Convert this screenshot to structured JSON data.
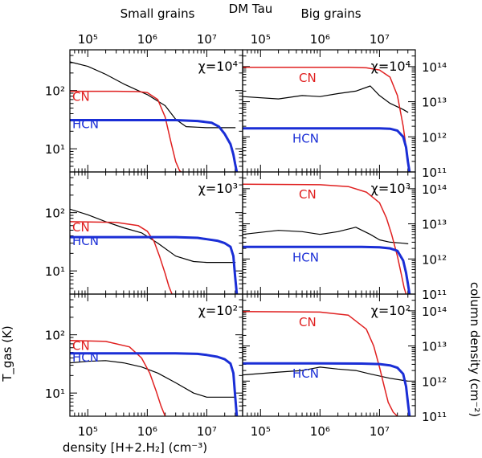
{
  "figure": {
    "title": "DM Tau",
    "left_column_title": "Small grains",
    "right_column_title": "Big grains",
    "xlabel": "density [H+2.H₂] (cm⁻³)",
    "ylabel_left": "T_gas (K)",
    "ylabel_right": "column density (cm⁻²)",
    "colors": {
      "CN": "#e02020",
      "HCN": "#1a2ed6",
      "Tgas": "#000000"
    }
  },
  "chart_data": [
    {
      "type": "line",
      "panel": "small-grains chi=1e4",
      "column": "left",
      "row": 0,
      "annotation": "χ=10⁴",
      "xscale": "log",
      "xlim": [
        50000,
        40000000
      ],
      "ylabel": "T_gas (K)",
      "yscale": "log",
      "ylim": [
        4,
        500
      ],
      "yticks": [
        10,
        100
      ],
      "series": [
        {
          "name": "Tgas",
          "label": "",
          "width": 1.2,
          "x": [
            50000,
            100000,
            200000,
            400000,
            700000,
            1000000,
            2000000,
            3000000,
            4500000,
            7000000,
            10000000,
            20000000,
            30000000
          ],
          "y": [
            310,
            260,
            190,
            130,
            100,
            85,
            55,
            32,
            24,
            23.5,
            23,
            23,
            23
          ]
        },
        {
          "name": "CN",
          "label": "CN",
          "label_pos": "left",
          "width": 1.5,
          "x": [
            50000,
            300000,
            700000,
            1000000,
            1500000,
            2000000,
            2500000,
            3000000,
            3500000,
            3700000
          ],
          "y": [
            97,
            97,
            96,
            92,
            70,
            35,
            13,
            6,
            4.2,
            4
          ]
        },
        {
          "name": "HCN",
          "label": "HCN",
          "label_pos": "left",
          "width": 3,
          "x": [
            50000,
            1000000,
            3000000,
            7000000,
            12000000,
            16000000,
            20000000,
            25000000,
            28000000,
            30000000,
            32000000
          ],
          "y": [
            31,
            31,
            31,
            30,
            28,
            24,
            18,
            12,
            8,
            5.5,
            4
          ]
        }
      ]
    },
    {
      "type": "line",
      "panel": "small-grains chi=1e3",
      "column": "left",
      "row": 1,
      "annotation": "χ=10³",
      "xscale": "log",
      "xlim": [
        50000,
        40000000
      ],
      "yscale": "log",
      "ylim": [
        4,
        500
      ],
      "yticks": [
        10,
        100
      ],
      "series": [
        {
          "name": "Tgas",
          "label": "",
          "width": 1.2,
          "x": [
            50000,
            100000,
            200000,
            400000,
            800000,
            1500000,
            3000000,
            6000000,
            10000000,
            20000000,
            30000000
          ],
          "y": [
            115,
            92,
            70,
            55,
            45,
            30,
            18,
            14.5,
            14,
            14,
            14
          ]
        },
        {
          "name": "CN",
          "label": "CN",
          "label_pos": "left",
          "width": 1.5,
          "x": [
            50000,
            300000,
            700000,
            1000000,
            1300000,
            1600000,
            2000000,
            2300000,
            2600000
          ],
          "y": [
            70,
            68,
            60,
            48,
            32,
            18,
            9,
            5.5,
            4
          ]
        },
        {
          "name": "HCN",
          "label": "HCN",
          "label_pos": "left",
          "width": 3,
          "x": [
            50000,
            1000000,
            3000000,
            7000000,
            10000000,
            15000000,
            20000000,
            25000000,
            28000000,
            30000000,
            32000000
          ],
          "y": [
            38,
            38,
            38,
            37,
            35,
            33,
            30,
            26,
            18,
            8,
            4
          ]
        }
      ]
    },
    {
      "type": "line",
      "panel": "small-grains chi=1e2",
      "column": "left",
      "row": 2,
      "annotation": "χ=10²",
      "xscale": "log",
      "xlim": [
        50000,
        40000000
      ],
      "yscale": "log",
      "ylim": [
        4,
        500
      ],
      "yticks": [
        10,
        100
      ],
      "series": [
        {
          "name": "Tgas",
          "label": "",
          "width": 1.2,
          "x": [
            50000,
            100000,
            200000,
            400000,
            800000,
            1500000,
            3000000,
            6000000,
            10000000,
            20000000,
            30000000
          ],
          "y": [
            33,
            35,
            36,
            33,
            28,
            22,
            15,
            10,
            8.5,
            8.5,
            8.5
          ]
        },
        {
          "name": "CN",
          "label": "CN",
          "label_pos": "left",
          "width": 1.5,
          "x": [
            50000,
            200000,
            500000,
            800000,
            1100000,
            1400000,
            1700000,
            2000000
          ],
          "y": [
            80,
            77,
            62,
            40,
            22,
            11,
            6,
            4
          ]
        },
        {
          "name": "HCN",
          "label": "HCN",
          "label_pos": "left",
          "width": 3,
          "x": [
            50000,
            1000000,
            3000000,
            7000000,
            10000000,
            15000000,
            20000000,
            25000000,
            28000000,
            30000000,
            32000000
          ],
          "y": [
            48,
            48,
            48,
            47,
            45,
            42,
            38,
            32,
            22,
            9,
            4
          ]
        }
      ]
    },
    {
      "type": "line",
      "panel": "big-grains chi=1e4",
      "column": "right",
      "row": 0,
      "annotation": "χ=10⁴",
      "xscale": "log",
      "xlim": [
        50000,
        40000000
      ],
      "ylabel": "column density (cm⁻²)",
      "yscale": "log",
      "ylim": [
        100000000000,
        300000000000000
      ],
      "yticks": [
        100000000000,
        1000000000000,
        10000000000000,
        100000000000000
      ],
      "series": [
        {
          "name": "Tgas",
          "label": "",
          "width": 1.2,
          "x": [
            50000,
            200000,
            500000,
            1000000,
            2000000,
            4000000,
            7000000,
            10000000,
            15000000,
            25000000,
            30000000
          ],
          "y": [
            14000000000000,
            12000000000000,
            15000000000000,
            14000000000000,
            17000000000000,
            20000000000000,
            28000000000000,
            15000000000000,
            9000000000000,
            6000000000000,
            5000000000000
          ]
        },
        {
          "name": "CN",
          "label": "CN",
          "label_pos": "mid",
          "width": 1.5,
          "x": [
            50000,
            1000000,
            3000000,
            6000000,
            10000000,
            15000000,
            20000000,
            25000000,
            28000000,
            30000000,
            32000000
          ],
          "y": [
            95000000000000,
            95000000000000,
            95000000000000,
            92000000000000,
            80000000000000,
            50000000000000,
            15000000000000,
            2000000000000,
            500000000000,
            200000000000,
            100000000000
          ]
        },
        {
          "name": "HCN",
          "label": "HCN",
          "label_pos": "mid",
          "width": 3,
          "x": [
            50000,
            1000000,
            5000000,
            10000000,
            15000000,
            20000000,
            25000000,
            28000000,
            30000000,
            32000000
          ],
          "y": [
            1750000000000,
            1750000000000,
            1750000000000,
            1740000000000,
            1700000000000,
            1500000000000,
            1000000000000,
            500000000000,
            200000000000,
            100000000000
          ]
        }
      ]
    },
    {
      "type": "line",
      "panel": "big-grains chi=1e3",
      "column": "right",
      "row": 1,
      "annotation": "χ=10³",
      "xscale": "log",
      "xlim": [
        50000,
        40000000
      ],
      "yscale": "log",
      "ylim": [
        100000000000,
        300000000000000
      ],
      "yticks": [
        100000000000,
        1000000000000,
        10000000000000,
        100000000000000
      ],
      "series": [
        {
          "name": "Tgas",
          "label": "",
          "width": 1.2,
          "x": [
            50000,
            200000,
            500000,
            1000000,
            2000000,
            4000000,
            7000000,
            10000000,
            15000000,
            25000000,
            30000000
          ],
          "y": [
            5000000000000,
            6500000000000,
            6000000000000,
            5000000000000,
            6000000000000,
            8000000000000,
            5000000000000,
            3500000000000,
            3000000000000,
            2800000000000,
            2700000000000
          ]
        },
        {
          "name": "CN",
          "label": "CN",
          "label_pos": "mid",
          "width": 1.5,
          "x": [
            50000,
            1000000,
            3000000,
            6000000,
            10000000,
            13000000,
            16000000,
            20000000,
            23000000,
            26000000,
            28000000
          ],
          "y": [
            135000000000000,
            130000000000000,
            115000000000000,
            80000000000000,
            40000000000000,
            15000000000000,
            5000000000000,
            1200000000000,
            400000000000,
            150000000000,
            100000000000
          ]
        },
        {
          "name": "HCN",
          "label": "HCN",
          "label_pos": "mid",
          "width": 3,
          "x": [
            50000,
            1000000,
            5000000,
            10000000,
            15000000,
            20000000,
            25000000,
            28000000,
            30000000,
            32000000
          ],
          "y": [
            2200000000000,
            2200000000000,
            2200000000000,
            2150000000000,
            2000000000000,
            1700000000000,
            900000000000,
            400000000000,
            200000000000,
            100000000000
          ]
        }
      ]
    },
    {
      "type": "line",
      "panel": "big-grains chi=1e2",
      "column": "right",
      "row": 2,
      "annotation": "χ=10²",
      "xscale": "log",
      "xlim": [
        50000,
        40000000
      ],
      "yscale": "log",
      "ylim": [
        100000000000,
        300000000000000
      ],
      "yticks": [
        100000000000,
        1000000000000,
        10000000000000,
        100000000000000
      ],
      "series": [
        {
          "name": "Tgas",
          "label": "",
          "width": 1.2,
          "x": [
            50000,
            200000,
            500000,
            1000000,
            2000000,
            4000000,
            7000000,
            10000000,
            15000000,
            25000000,
            30000000
          ],
          "y": [
            1500000000000,
            1800000000000,
            2000000000000,
            2500000000000,
            2200000000000,
            2000000000000,
            1600000000000,
            1400000000000,
            1200000000000,
            1050000000000,
            1000000000000
          ]
        },
        {
          "name": "CN",
          "label": "CN",
          "label_pos": "mid",
          "width": 1.5,
          "x": [
            50000,
            1000000,
            3000000,
            6000000,
            8000000,
            10000000,
            12000000,
            14000000,
            17000000,
            20000000
          ],
          "y": [
            95000000000000,
            92000000000000,
            75000000000000,
            30000000000000,
            10000000000000,
            2500000000000,
            700000000000,
            250000000000,
            130000000000,
            100000000000
          ]
        },
        {
          "name": "HCN",
          "label": "HCN",
          "label_pos": "mid",
          "width": 3,
          "x": [
            50000,
            1000000,
            5000000,
            10000000,
            15000000,
            20000000,
            25000000,
            28000000,
            30000000,
            32000000
          ],
          "y": [
            3200000000000,
            3200000000000,
            3150000000000,
            3050000000000,
            2800000000000,
            2400000000000,
            1600000000000,
            700000000000,
            250000000000,
            100000000000
          ]
        }
      ]
    }
  ]
}
